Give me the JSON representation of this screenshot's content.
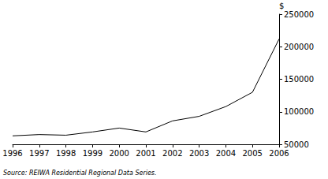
{
  "chart_data": {
    "type": "line",
    "y_label": "$",
    "annotations": [
      "Source: REIWA Residential Regional Data Series."
    ],
    "x": [
      1996,
      1997,
      1998,
      1999,
      2000,
      2001,
      2002,
      2003,
      2004,
      2005,
      2006
    ],
    "values": [
      63000,
      65000,
      64000,
      69000,
      75000,
      69000,
      86000,
      93000,
      108000,
      130000,
      212000
    ],
    "color": "#000000",
    "xlim": [
      1996,
      2006
    ],
    "xticks": [
      1996,
      1997,
      1998,
      1999,
      2000,
      2001,
      2002,
      2003,
      2004,
      2005,
      2006
    ],
    "ylim": [
      50000,
      250000
    ],
    "yticks": [
      50000,
      100000,
      150000,
      200000,
      250000
    ],
    "grid": false
  }
}
